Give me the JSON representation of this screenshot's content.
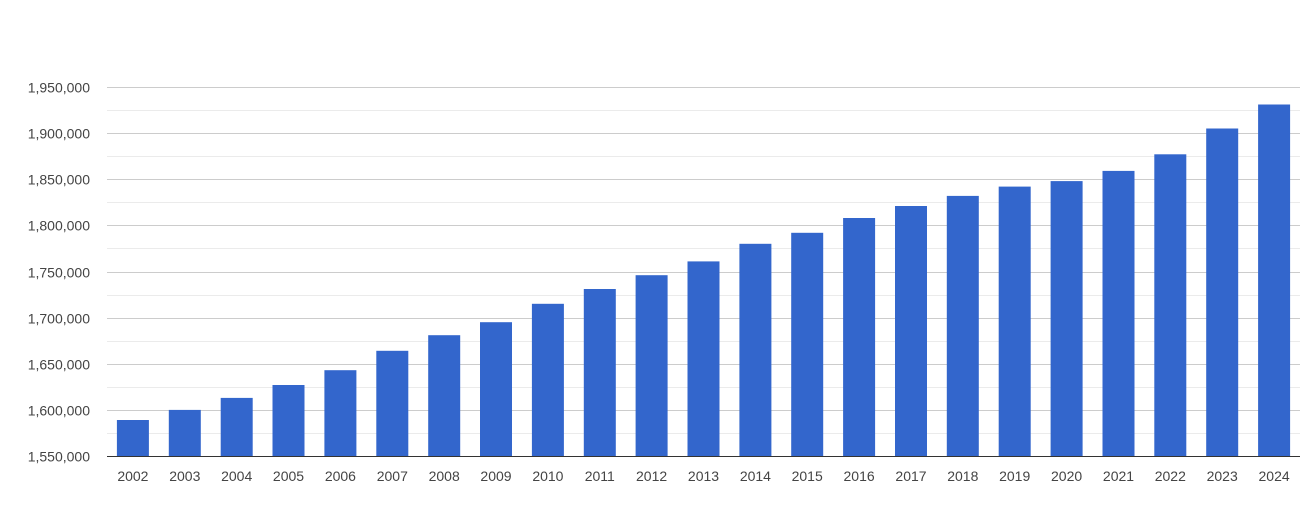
{
  "chart_data": {
    "type": "bar",
    "title": "",
    "xlabel": "",
    "ylabel": "",
    "categories": [
      "2002",
      "2003",
      "2004",
      "2005",
      "2006",
      "2007",
      "2008",
      "2009",
      "2010",
      "2011",
      "2012",
      "2013",
      "2014",
      "2015",
      "2016",
      "2017",
      "2018",
      "2019",
      "2020",
      "2021",
      "2022",
      "2023",
      "2024"
    ],
    "values": [
      1589000,
      1600000,
      1613000,
      1627000,
      1643000,
      1664000,
      1681000,
      1695000,
      1715000,
      1731000,
      1746000,
      1761000,
      1780000,
      1792000,
      1808000,
      1821000,
      1832000,
      1842000,
      1848000,
      1859000,
      1877000,
      1905000,
      1931000
    ],
    "ylim": [
      1550000,
      1950000
    ],
    "y_ticks": [
      "1,550,000",
      "1,600,000",
      "1,650,000",
      "1,700,000",
      "1,750,000",
      "1,800,000",
      "1,850,000",
      "1,900,000",
      "1,950,000"
    ],
    "y_tick_values": [
      1550000,
      1600000,
      1650000,
      1700000,
      1750000,
      1800000,
      1850000,
      1900000,
      1950000
    ],
    "minor_gridlines": true,
    "grid": true,
    "legend": "none",
    "bar_color": "#3366cc"
  }
}
